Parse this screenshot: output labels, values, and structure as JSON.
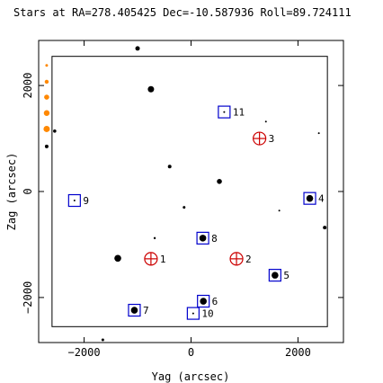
{
  "chart_data": {
    "type": "scatter",
    "title": "Stars at RA=278.405425 Dec=-10.587936 Roll=89.724111",
    "xlabel": "Yag (arcsec)",
    "ylabel": "Zag (arcsec)",
    "xlim": [
      -2850,
      2850
    ],
    "ylim": [
      -2850,
      2850
    ],
    "x_ticks": [
      -2000,
      0,
      2000
    ],
    "y_ticks": [
      -2000,
      0,
      2000
    ],
    "x_tick_labels": [
      "−2000",
      "0",
      "2000"
    ],
    "y_tick_labels": [
      "−2000",
      "0",
      "2000"
    ],
    "grid": false,
    "ccd_boundary": {
      "x": [
        -2600,
        2550
      ],
      "y": [
        -2550,
        2550
      ]
    },
    "colors": {
      "star": "#000000",
      "guide_box": "#0000cc",
      "acq_crosshair": "#cc0000",
      "label_red": "#cc0000",
      "label_blue": "#0000cc",
      "bright_star": "#ff8800"
    },
    "stars": [
      {
        "x": -1000,
        "y": 2700,
        "r": 2.5
      },
      {
        "x": -750,
        "y": 1930,
        "r": 3.5
      },
      {
        "x": -2700,
        "y": 850,
        "r": 2
      },
      {
        "x": -2550,
        "y": 1140,
        "r": 1.8
      },
      {
        "x": -400,
        "y": 470,
        "r": 2
      },
      {
        "x": 530,
        "y": 190,
        "r": 2.8
      },
      {
        "x": -130,
        "y": -300,
        "r": 1.5
      },
      {
        "x": 1400,
        "y": 1320,
        "r": 1
      },
      {
        "x": 2390,
        "y": 1100,
        "r": 1
      },
      {
        "x": 1650,
        "y": -360,
        "r": 1
      },
      {
        "x": 2500,
        "y": -680,
        "r": 2
      },
      {
        "x": -680,
        "y": -880,
        "r": 1.2
      },
      {
        "x": -1370,
        "y": -1260,
        "r": 3.8
      },
      {
        "x": 220,
        "y": -880,
        "r": 3.8
      },
      {
        "x": 1570,
        "y": -1580,
        "r": 3.8
      },
      {
        "x": 2220,
        "y": -130,
        "r": 3.8
      },
      {
        "x": 230,
        "y": -2070,
        "r": 3.8
      },
      {
        "x": -1060,
        "y": -2240,
        "r": 3.8
      },
      {
        "x": 620,
        "y": 1500,
        "r": 1
      },
      {
        "x": -2180,
        "y": -170,
        "r": 1
      },
      {
        "x": 40,
        "y": -2300,
        "r": 1
      },
      {
        "x": -1650,
        "y": -2800,
        "r": 1.5
      }
    ],
    "bright_stars": [
      {
        "x": -2700,
        "y": 2380,
        "r": 1.5
      },
      {
        "x": -2700,
        "y": 2070,
        "r": 2.2
      },
      {
        "x": -2700,
        "y": 1780,
        "r": 2.8
      },
      {
        "x": -2700,
        "y": 1480,
        "r": 3.2
      },
      {
        "x": -2700,
        "y": 1180,
        "r": 3.5
      }
    ],
    "guide_stars": [
      {
        "id": "4",
        "x": 2220,
        "y": -130
      },
      {
        "id": "5",
        "x": 1570,
        "y": -1580
      },
      {
        "id": "6",
        "x": 230,
        "y": -2070
      },
      {
        "id": "7",
        "x": -1060,
        "y": -2240
      },
      {
        "id": "8",
        "x": 220,
        "y": -880
      },
      {
        "id": "9",
        "x": -2180,
        "y": -170
      },
      {
        "id": "10",
        "x": 40,
        "y": -2300
      },
      {
        "id": "11",
        "x": 620,
        "y": 1500
      }
    ],
    "acq_stars": [
      {
        "id": "1",
        "x": -750,
        "y": -1270
      },
      {
        "id": "2",
        "x": 850,
        "y": -1270
      },
      {
        "id": "3",
        "x": 1280,
        "y": 1000
      }
    ]
  }
}
